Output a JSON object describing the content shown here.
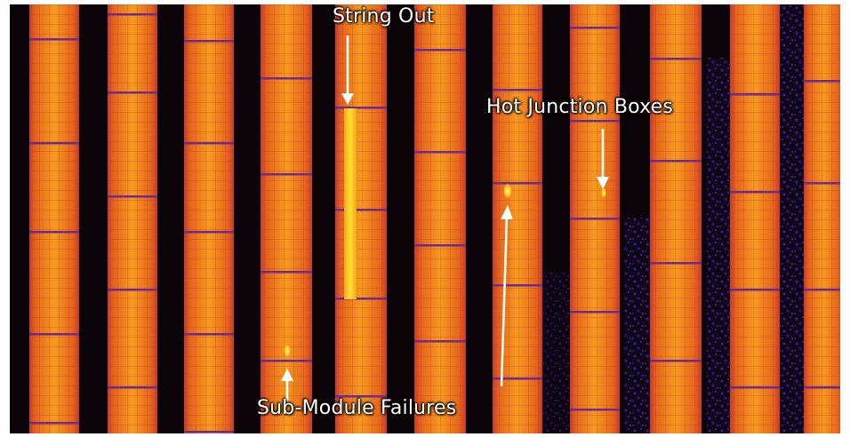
{
  "image": {
    "subject": "aerial-thermal-solar-array",
    "palette": {
      "panel_hot": "#f28a1a",
      "panel_warm": "#e2661a",
      "panel_edge": "#c23e4e",
      "cell_grid": "#b04c2e",
      "module_divider": "#6e2b8e",
      "gap_dark": "#0c0509",
      "gap_purple": "#2a1a6e",
      "hotspot": "#ffd12a",
      "string_out": "#ffe033",
      "annotation_text": "#ffffff",
      "arrow": "#ffffff"
    }
  },
  "annotations": {
    "string_out": "String Out",
    "hot_junction_boxes": "Hot Junction Boxes",
    "sub_module_failures": "Sub-Module Failures"
  }
}
